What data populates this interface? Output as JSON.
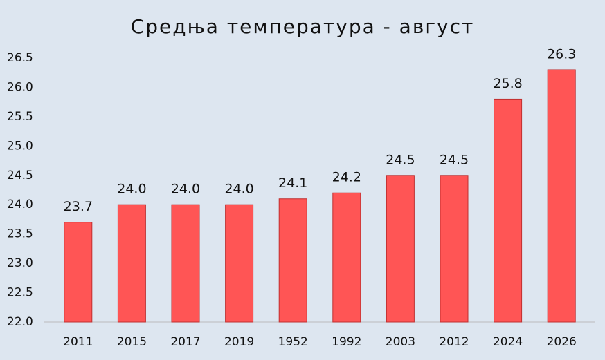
{
  "chart_data": {
    "type": "bar",
    "title": "Средња температура - август",
    "categories": [
      "2011",
      "2015",
      "2017",
      "2019",
      "1952",
      "1992",
      "2003",
      "2012",
      "2024",
      "2026"
    ],
    "values": [
      23.7,
      24.0,
      24.0,
      24.0,
      24.1,
      24.2,
      24.5,
      24.5,
      25.8,
      26.3
    ],
    "value_labels": [
      "23.7",
      "24.0",
      "24.0",
      "24.0",
      "24.1",
      "24.2",
      "24.5",
      "24.5",
      "25.8",
      "26.3"
    ],
    "color": "#ff5555",
    "ylim": [
      22,
      26.5
    ],
    "yticks": [
      {
        "value": 22,
        "label": "22.0"
      },
      22.5,
      {
        "value": 23,
        "label": "23.0"
      },
      23.5,
      {
        "value": 24,
        "label": "24.0"
      },
      24.5,
      {
        "value": 25,
        "label": "25.0"
      },
      25.5,
      {
        "value": 26,
        "label": "26.0"
      },
      26.5
    ],
    "grid": false
  }
}
